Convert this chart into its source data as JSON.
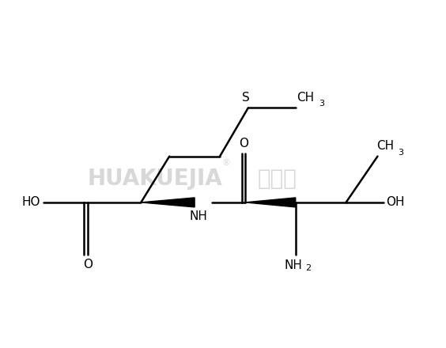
{
  "bg_color": "#ffffff",
  "line_color": "#000000",
  "line_width": 1.8,
  "font_size": 11,
  "sub_font_size": 8,
  "watermark_color": "#d8d8d8",
  "watermark_text": "HUAKUEJIA",
  "watermark_cn": "化学加",
  "reg_symbol": "®",
  "xlim": [
    0,
    7.0
  ],
  "ylim": [
    0.5,
    5.5
  ]
}
